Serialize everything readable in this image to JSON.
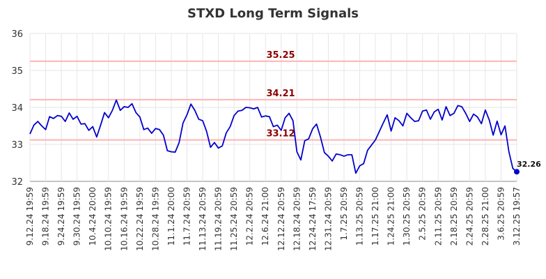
{
  "chart_data": {
    "type": "line",
    "title": "STXD Long Term Signals",
    "xlabel": "",
    "ylabel": "",
    "ylim": [
      32,
      36
    ],
    "yticks": [
      "32",
      "33",
      "34",
      "35",
      "36"
    ],
    "grid": true,
    "x_tick_labels": [
      "9.12.24 19:59",
      "9.18.24 19:59",
      "9.24.24 19:59",
      "9.30.24 19:59",
      "10.4.24 20:00",
      "10.10.24 19:59",
      "10.16.24 19:59",
      "10.22.24 19:59",
      "10.28.24 19:59",
      "11.1.24 20:00",
      "11.7.24 20:59",
      "11.13.24 20:59",
      "11.19.24 20:59",
      "11.25.24 20:59",
      "12.2.24 20:59",
      "12.6.24 21:00",
      "12.12.24 20:59",
      "12.18.24 20:59",
      "12.24.24 17:59",
      "12.31.24 20:59",
      "1.7.25 20:59",
      "1.13.25 20:59",
      "1.17.25 21:00",
      "1.24.25 21:00",
      "1.30.25 20:59",
      "2.5.25 20:59",
      "2.11.25 20:59",
      "2.18.25 20:59",
      "2.24.25 20:59",
      "2.28.25 21:00",
      "3.6.25 20:59",
      "3.12.25 19:57"
    ],
    "levels": [
      {
        "value": 35.25,
        "label": "35.25"
      },
      {
        "value": 34.21,
        "label": "34.21"
      },
      {
        "value": 33.12,
        "label": "33.12"
      }
    ],
    "last_value": {
      "value": 32.26,
      "label": "32.26"
    },
    "series": [
      {
        "color": "#0000cc",
        "values": [
          33.28,
          33.52,
          33.62,
          33.5,
          33.4,
          33.75,
          33.7,
          33.78,
          33.76,
          33.62,
          33.85,
          33.68,
          33.76,
          33.55,
          33.56,
          33.38,
          33.48,
          33.2,
          33.52,
          33.86,
          33.72,
          33.92,
          34.2,
          33.92,
          34.02,
          34.0,
          34.1,
          33.86,
          33.74,
          33.4,
          33.44,
          33.3,
          33.43,
          33.4,
          33.25,
          32.83,
          32.8,
          32.79,
          33.05,
          33.58,
          33.8,
          34.09,
          33.92,
          33.68,
          33.64,
          33.35,
          32.92,
          33.05,
          32.9,
          32.96,
          33.31,
          33.48,
          33.78,
          33.9,
          33.92,
          34.0,
          33.99,
          33.96,
          34.0,
          33.74,
          33.77,
          33.75,
          33.48,
          33.52,
          33.38,
          33.72,
          33.84,
          33.64,
          32.8,
          32.58,
          33.1,
          33.15,
          33.42,
          33.55,
          33.2,
          32.78,
          32.68,
          32.55,
          32.74,
          32.72,
          32.68,
          32.72,
          32.72,
          32.22,
          32.42,
          32.48,
          32.84,
          32.98,
          33.12,
          33.35,
          33.58,
          33.8,
          33.36,
          33.72,
          33.64,
          33.5,
          33.84,
          33.72,
          33.62,
          33.64,
          33.9,
          33.93,
          33.68,
          33.88,
          33.95,
          33.66,
          34.02,
          33.78,
          33.84,
          34.05,
          34.02,
          33.84,
          33.62,
          33.82,
          33.74,
          33.56,
          33.93,
          33.66,
          33.25,
          33.63,
          33.26,
          33.5,
          32.8,
          32.35,
          32.26
        ]
      }
    ]
  }
}
